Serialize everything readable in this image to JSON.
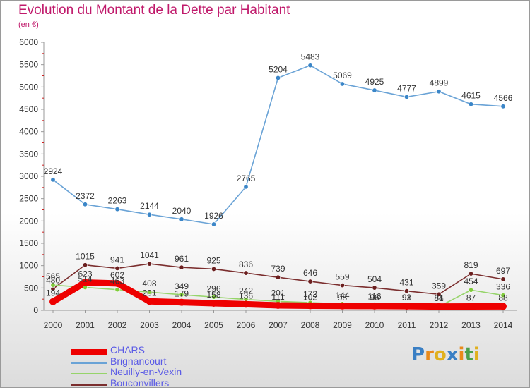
{
  "chart_data": {
    "type": "line",
    "title": "Evolution du Montant de la Dette par Habitant",
    "subtitle": "(en €)",
    "x": [
      "2000",
      "2001",
      "2002",
      "2003",
      "2004",
      "2005",
      "2006",
      "2007",
      "2008",
      "2009",
      "2010",
      "2011",
      "2012",
      "2013",
      "2014"
    ],
    "yticks": [
      "0",
      "500",
      "1000",
      "1500",
      "2000",
      "2500",
      "3000",
      "3500",
      "4000",
      "4500",
      "5000",
      "5500",
      "6000"
    ],
    "ylim": [
      0,
      6000
    ],
    "grid": false,
    "legend_position": "bottom-left",
    "series": [
      {
        "name": "Brignancourt",
        "color": "#6aa3d6",
        "marker": "#3b86c8",
        "values": [
          2924,
          2372,
          2263,
          2144,
          2040,
          1926,
          2765,
          5204,
          5483,
          5069,
          4925,
          4777,
          4899,
          4615,
          4566
        ],
        "labels": [
          "2924",
          "2372",
          "2263",
          "2144",
          "2040",
          "1926",
          "2765",
          "5204",
          "5483",
          "5069",
          "4925",
          "4777",
          "4899",
          "4615",
          "4566"
        ]
      },
      {
        "name": "Bouconvillers",
        "color": "#7b2e2e",
        "marker": "#6b1f1f",
        "values": [
          480,
          1015,
          941,
          1041,
          961,
          925,
          836,
          739,
          646,
          559,
          504,
          431,
          359,
          819,
          697
        ],
        "labels": [
          "480",
          "1015",
          "941",
          "1041",
          "961",
          "925",
          "836",
          "739",
          "646",
          "559",
          "504",
          "431",
          "359",
          "819",
          "697"
        ]
      },
      {
        "name": "Neuilly-en-Vexin",
        "color": "#96d46a",
        "marker": "#7fcc3a",
        "values": [
          565,
          514,
          463,
          408,
          349,
          296,
          242,
          201,
          172,
          144,
          116,
          91,
          81,
          454,
          336
        ],
        "labels": [
          "565",
          "514",
          "463",
          "408",
          "349",
          "296",
          "242",
          "201",
          "172",
          "144",
          "116",
          "91",
          "81",
          "454",
          "336"
        ]
      },
      {
        "name": "CHARS",
        "color": "#ee0000",
        "marker": "#ee0000",
        "values": [
          194,
          623,
          602,
          201,
          179,
          158,
          136,
          111,
          102,
          98,
          96,
          93,
          84,
          87,
          88
        ],
        "labels": [
          "194",
          "623",
          "602",
          "201",
          "179",
          "158",
          "136",
          "111",
          "102",
          "98",
          "96",
          "93",
          "84",
          "87",
          "88"
        ]
      }
    ],
    "legend": [
      {
        "name": "CHARS",
        "color": "#ee0000",
        "thickness": 8
      },
      {
        "name": "Brignancourt",
        "color": "#6aa3d6",
        "thickness": 2
      },
      {
        "name": "Neuilly-en-Vexin",
        "color": "#96d46a",
        "thickness": 2
      },
      {
        "name": "Bouconvillers",
        "color": "#7b2e2e",
        "thickness": 2
      }
    ]
  },
  "logo": {
    "letters": [
      "P",
      "r",
      "o",
      "x",
      "i",
      "t",
      "i"
    ],
    "colors": [
      "#3a7fc4",
      "#e98a1b",
      "#e0b01e",
      "#3a7fc4",
      "#e98a1b",
      "#4aa04a",
      "#e0b01e"
    ]
  }
}
